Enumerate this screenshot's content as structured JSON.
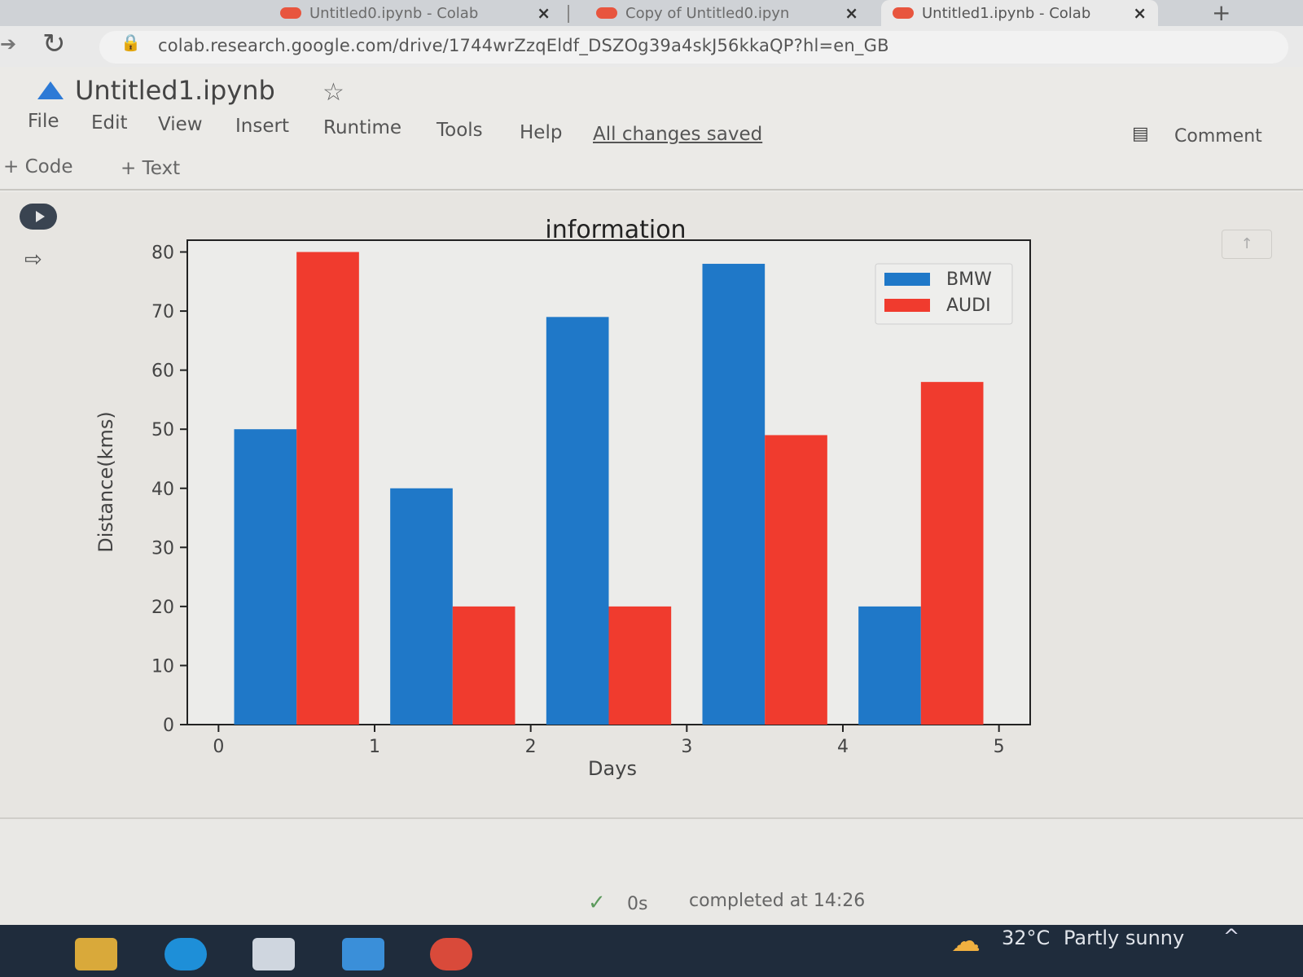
{
  "browser": {
    "tabs": [
      {
        "label": "Untitled0.ipynb - Colab"
      },
      {
        "label": "Copy of Untitled0.ipyn"
      },
      {
        "label": "Untitled1.ipynb - Colab"
      }
    ],
    "new_tab": "+",
    "url": "colab.research.google.com/drive/1744wrZzqEldf_DSZOg39a4skJ56kkaQP?hl=en_GB"
  },
  "colab": {
    "notebook_title": "Untitled1.ipynb",
    "menu": [
      "File",
      "Edit",
      "View",
      "Insert",
      "Runtime",
      "Tools",
      "Help"
    ],
    "save_status": "All changes saved",
    "comment_label": "Comment",
    "add_code": "+ Code",
    "add_text": "+ Text"
  },
  "status": {
    "exec_time": "0s",
    "completed": "completed at 14:26"
  },
  "taskbar": {
    "weather_temp": "32°C",
    "weather_desc": "Partly sunny"
  },
  "colors": {
    "bmw": "#1f78c8",
    "audi": "#f03b2e"
  },
  "chart_data": {
    "type": "bar",
    "title": "information",
    "xlabel": "Days",
    "ylabel": "Distance(kms)",
    "xlim": [
      -0.2,
      5.2
    ],
    "ylim": [
      0,
      82
    ],
    "xticks": [
      0,
      1,
      2,
      3,
      4,
      5
    ],
    "yticks": [
      0,
      10,
      20,
      30,
      40,
      50,
      60,
      70,
      80
    ],
    "bar_width": 0.4,
    "legend_position": "top-right",
    "series": [
      {
        "name": "BMW",
        "x": [
          0.3,
          1.3,
          2.3,
          3.3,
          4.3
        ],
        "values": [
          50,
          40,
          69,
          78,
          20
        ]
      },
      {
        "name": "AUDI",
        "x": [
          0.7,
          1.7,
          2.7,
          3.7,
          4.7
        ],
        "values": [
          80,
          20,
          20,
          49,
          58
        ]
      }
    ]
  }
}
